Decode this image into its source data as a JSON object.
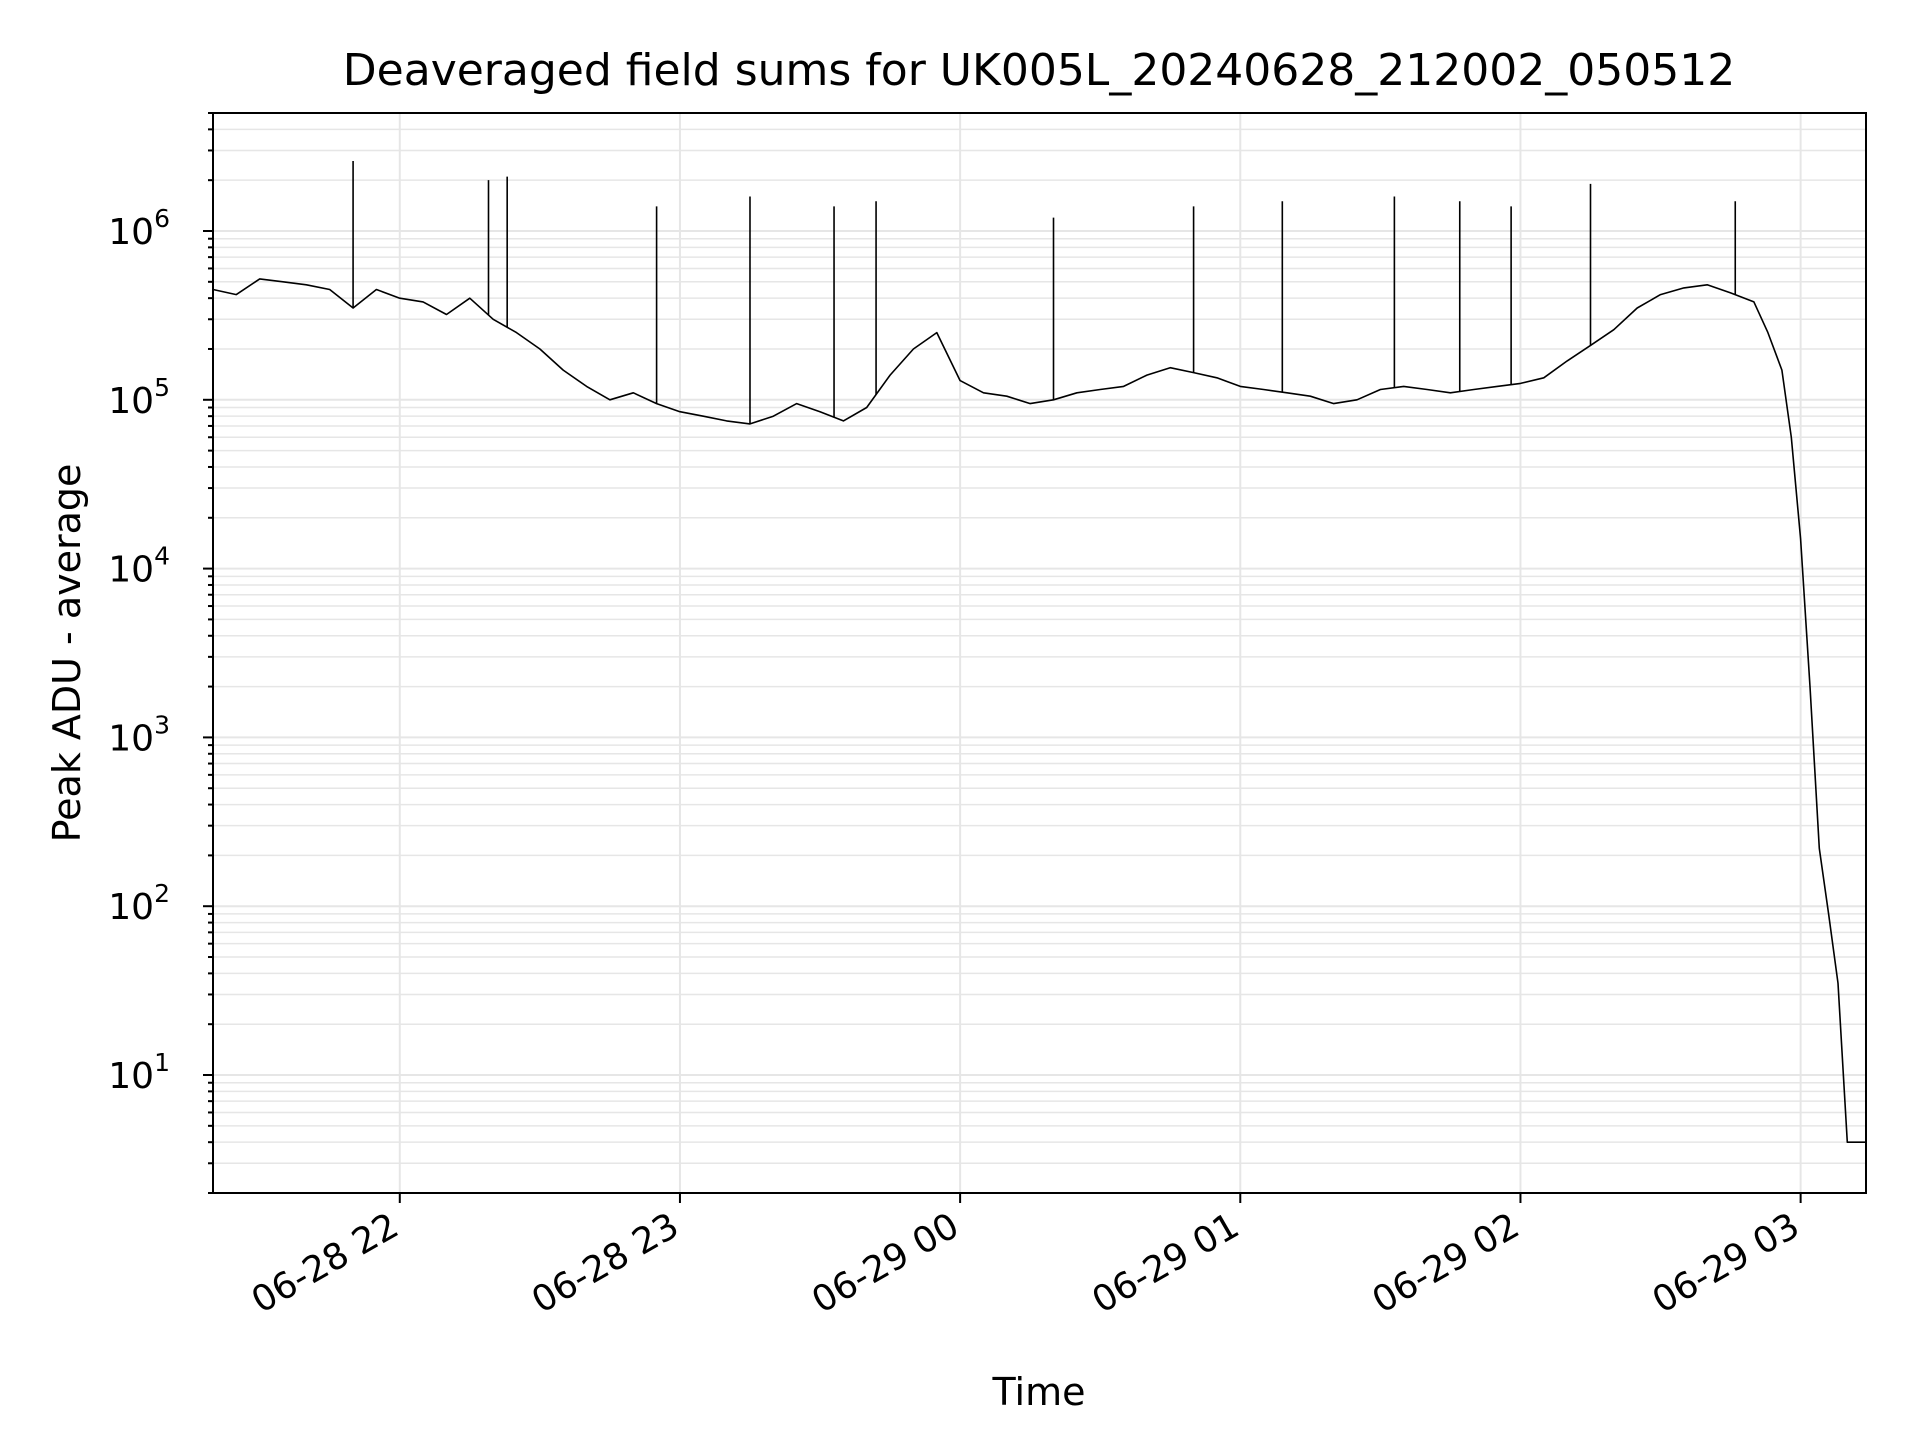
{
  "chart_data": {
    "type": "line",
    "title": "Deaveraged field sums for UK005L_20240628_212002_050512",
    "xlabel": "Time",
    "ylabel": "Peak ADU - average",
    "y_scale": "log",
    "ylim": [
      2,
      5000000
    ],
    "xlim": [
      "2024-06-28T21:20:00",
      "2024-06-29T03:14:00"
    ],
    "x_ticks": [
      {
        "t": "2024-06-28T22:00:00",
        "label": "06-28 22"
      },
      {
        "t": "2024-06-28T23:00:00",
        "label": "06-28 23"
      },
      {
        "t": "2024-06-29T00:00:00",
        "label": "06-29 00"
      },
      {
        "t": "2024-06-29T01:00:00",
        "label": "06-29 01"
      },
      {
        "t": "2024-06-29T02:00:00",
        "label": "06-29 02"
      },
      {
        "t": "2024-06-29T03:00:00",
        "label": "06-29 03"
      }
    ],
    "y_ticks": [
      {
        "value": 10,
        "base": "10",
        "exp": "1"
      },
      {
        "value": 100,
        "base": "10",
        "exp": "2"
      },
      {
        "value": 1000,
        "base": "10",
        "exp": "3"
      },
      {
        "value": 10000,
        "base": "10",
        "exp": "4"
      },
      {
        "value": 100000,
        "base": "10",
        "exp": "5"
      },
      {
        "value": 1000000,
        "base": "10",
        "exp": "6"
      }
    ],
    "grid": true,
    "line_color": "#000000",
    "grid_color": "#e6e6e6",
    "series": [
      {
        "x": [
          "2024-06-28T21:20:00",
          "2024-06-28T21:25:00",
          "2024-06-28T21:30:00",
          "2024-06-28T21:35:00",
          "2024-06-28T21:40:00",
          "2024-06-28T21:45:00",
          "2024-06-28T21:50:00",
          "2024-06-28T21:55:00",
          "2024-06-28T22:00:00",
          "2024-06-28T22:05:00",
          "2024-06-28T22:10:00",
          "2024-06-28T22:15:00",
          "2024-06-28T22:20:00",
          "2024-06-28T22:25:00",
          "2024-06-28T22:30:00",
          "2024-06-28T22:35:00",
          "2024-06-28T22:40:00",
          "2024-06-28T22:45:00",
          "2024-06-28T22:50:00",
          "2024-06-28T22:55:00",
          "2024-06-28T23:00:00",
          "2024-06-28T23:05:00",
          "2024-06-28T23:10:00",
          "2024-06-28T23:15:00",
          "2024-06-28T23:20:00",
          "2024-06-28T23:25:00",
          "2024-06-28T23:30:00",
          "2024-06-28T23:35:00",
          "2024-06-28T23:40:00",
          "2024-06-28T23:45:00",
          "2024-06-28T23:50:00",
          "2024-06-28T23:55:00",
          "2024-06-29T00:00:00",
          "2024-06-29T00:05:00",
          "2024-06-29T00:10:00",
          "2024-06-29T00:15:00",
          "2024-06-29T00:20:00",
          "2024-06-29T00:25:00",
          "2024-06-29T00:30:00",
          "2024-06-29T00:35:00",
          "2024-06-29T00:40:00",
          "2024-06-29T00:45:00",
          "2024-06-29T00:50:00",
          "2024-06-29T00:55:00",
          "2024-06-29T01:00:00",
          "2024-06-29T01:05:00",
          "2024-06-29T01:10:00",
          "2024-06-29T01:15:00",
          "2024-06-29T01:20:00",
          "2024-06-29T01:25:00",
          "2024-06-29T01:30:00",
          "2024-06-29T01:35:00",
          "2024-06-29T01:40:00",
          "2024-06-29T01:45:00",
          "2024-06-29T01:50:00",
          "2024-06-29T01:55:00",
          "2024-06-29T02:00:00",
          "2024-06-29T02:05:00",
          "2024-06-29T02:10:00",
          "2024-06-29T02:15:00",
          "2024-06-29T02:20:00",
          "2024-06-29T02:25:00",
          "2024-06-29T02:30:00",
          "2024-06-29T02:35:00",
          "2024-06-29T02:40:00",
          "2024-06-29T02:45:00",
          "2024-06-29T02:50:00",
          "2024-06-29T02:53:00",
          "2024-06-29T02:56:00",
          "2024-06-29T02:58:00",
          "2024-06-29T03:00:00",
          "2024-06-29T03:02:00",
          "2024-06-29T03:04:00",
          "2024-06-29T03:06:00",
          "2024-06-29T03:08:00",
          "2024-06-29T03:10:00",
          "2024-06-29T03:14:00"
        ],
        "y": [
          450000,
          420000,
          520000,
          500000,
          480000,
          450000,
          350000,
          450000,
          400000,
          380000,
          320000,
          400000,
          300000,
          250000,
          200000,
          150000,
          120000,
          100000,
          110000,
          95000,
          85000,
          80000,
          75000,
          72000,
          80000,
          95000,
          85000,
          75000,
          90000,
          140000,
          200000,
          250000,
          130000,
          110000,
          105000,
          95000,
          100000,
          110000,
          115000,
          120000,
          140000,
          155000,
          145000,
          135000,
          120000,
          115000,
          110000,
          105000,
          95000,
          100000,
          115000,
          120000,
          115000,
          110000,
          115000,
          120000,
          125000,
          135000,
          170000,
          210000,
          260000,
          350000,
          420000,
          460000,
          480000,
          430000,
          380000,
          250000,
          150000,
          60000,
          15000,
          2000,
          220,
          90,
          35,
          4,
          4
        ]
      },
      {
        "name": "",
        "x": [
          "2024-06-28T21:50:00",
          "2024-06-28T22:19:00",
          "2024-06-28T22:23:00",
          "2024-06-28T22:55:00",
          "2024-06-28T23:15:00",
          "2024-06-28T23:33:00",
          "2024-06-28T23:42:00",
          "2024-06-29T00:20:00",
          "2024-06-29T00:50:00",
          "2024-06-29T01:09:00",
          "2024-06-29T01:33:00",
          "2024-06-29T01:47:00",
          "2024-06-29T01:58:00",
          "2024-06-29T02:15:00",
          "2024-06-29T02:46:00"
        ],
        "y": [
          2600000,
          2000000,
          2100000,
          1400000,
          1600000,
          1400000,
          1500000,
          1200000,
          1400000,
          1500000,
          1600000,
          1500000,
          1400000,
          1900000,
          1500000
        ]
      }
    ]
  }
}
